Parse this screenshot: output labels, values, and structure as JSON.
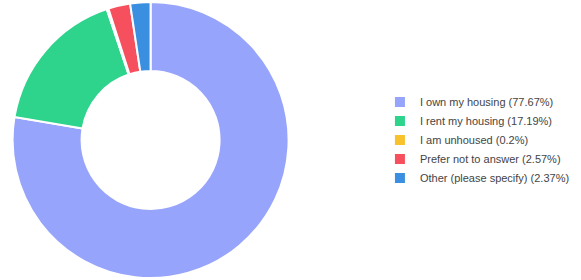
{
  "chart_data": {
    "type": "pie",
    "categories": [
      "I own my housing (77.67%)",
      "I rent my housing (17.19%)",
      "I am unhoused (0.2%)",
      "Prefer not to answer (2.57%)",
      "Other (please specify) (2.37%)"
    ],
    "values": [
      77.67,
      17.19,
      0.2,
      2.57,
      2.37
    ],
    "colors": [
      "#97a4fb",
      "#2ed38c",
      "#f8c22d",
      "#f6505e",
      "#3a8fe0"
    ],
    "legend": "right"
  }
}
